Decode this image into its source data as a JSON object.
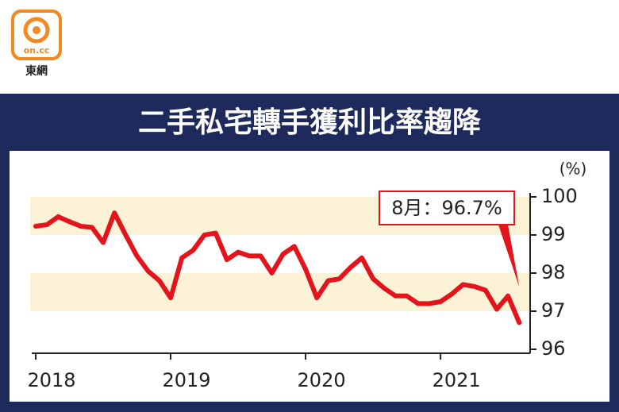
{
  "logo": {
    "text": "on.cc",
    "caption": "東網"
  },
  "chart_data": {
    "type": "line",
    "title": "二手私宅轉手獲利比率趨降",
    "y_unit": "(%)",
    "categories": [
      "2018",
      null,
      null,
      null,
      null,
      null,
      null,
      null,
      null,
      null,
      null,
      null,
      "2019",
      null,
      null,
      null,
      null,
      null,
      null,
      null,
      null,
      null,
      null,
      null,
      "2020",
      null,
      null,
      null,
      null,
      null,
      null,
      null,
      null,
      null,
      null,
      null,
      "2021",
      null,
      null,
      null,
      null,
      null,
      null,
      null
    ],
    "values": [
      99.23,
      99.27,
      99.48,
      99.35,
      99.23,
      99.2,
      98.8,
      99.58,
      99.0,
      98.45,
      98.05,
      97.8,
      97.35,
      98.4,
      98.6,
      99.0,
      99.05,
      98.35,
      98.55,
      98.45,
      98.45,
      98.0,
      98.5,
      98.7,
      98.1,
      97.35,
      97.8,
      97.85,
      98.15,
      98.4,
      97.85,
      97.6,
      97.4,
      97.4,
      97.2,
      97.2,
      97.25,
      97.45,
      97.7,
      97.65,
      97.55,
      97.05,
      97.4,
      96.7
    ],
    "color": "#e3141b",
    "ylim": [
      96,
      100
    ],
    "yticks": [
      96,
      97,
      98,
      99,
      100
    ],
    "bands": [
      [
        99,
        100
      ],
      [
        97,
        98
      ]
    ],
    "band_color": "#fcf3d6",
    "annotation": {
      "text": "8月：96.7%",
      "index": 43
    }
  }
}
